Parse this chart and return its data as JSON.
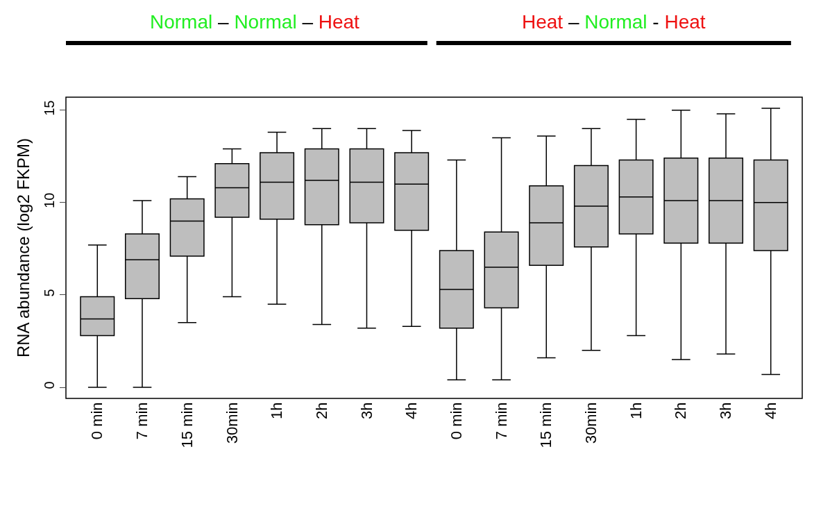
{
  "chart_data": {
    "type": "box",
    "ylabel": "RNA abundance (log2 FKPM)",
    "categories": [
      "0 min",
      "7 min",
      "15 min",
      "30min",
      "1h",
      "2h",
      "3h",
      "4h",
      "0 min",
      "7 min",
      "15 min",
      "30min",
      "1h",
      "2h",
      "3h",
      "4h"
    ],
    "boxes": [
      {
        "low": 0,
        "q1": 2.8,
        "median": 3.7,
        "q3": 4.9,
        "high": 7.7
      },
      {
        "low": 0,
        "q1": 4.8,
        "median": 6.9,
        "q3": 8.3,
        "high": 10.1
      },
      {
        "low": 3.5,
        "q1": 7.1,
        "median": 9.0,
        "q3": 10.2,
        "high": 11.4
      },
      {
        "low": 4.9,
        "q1": 9.2,
        "median": 10.8,
        "q3": 12.1,
        "high": 12.9
      },
      {
        "low": 4.5,
        "q1": 9.1,
        "median": 11.1,
        "q3": 12.7,
        "high": 13.8
      },
      {
        "low": 3.4,
        "q1": 8.8,
        "median": 11.2,
        "q3": 12.9,
        "high": 14.0
      },
      {
        "low": 3.2,
        "q1": 8.9,
        "median": 11.1,
        "q3": 12.9,
        "high": 14.0
      },
      {
        "low": 3.3,
        "q1": 8.5,
        "median": 11.0,
        "q3": 12.7,
        "high": 13.9
      },
      {
        "low": 0.4,
        "q1": 3.2,
        "median": 5.3,
        "q3": 7.4,
        "high": 12.3
      },
      {
        "low": 0.4,
        "q1": 4.3,
        "median": 6.5,
        "q3": 8.4,
        "high": 13.5
      },
      {
        "low": 1.6,
        "q1": 6.6,
        "median": 8.9,
        "q3": 10.9,
        "high": 13.6
      },
      {
        "low": 2.0,
        "q1": 7.6,
        "median": 9.8,
        "q3": 12.0,
        "high": 14.0
      },
      {
        "low": 2.8,
        "q1": 8.3,
        "median": 10.3,
        "q3": 12.3,
        "high": 14.5
      },
      {
        "low": 1.5,
        "q1": 7.8,
        "median": 10.1,
        "q3": 12.4,
        "high": 15.0
      },
      {
        "low": 1.8,
        "q1": 7.8,
        "median": 10.1,
        "q3": 12.4,
        "high": 14.8
      },
      {
        "low": 0.7,
        "q1": 7.4,
        "median": 10.0,
        "q3": 12.3,
        "high": 15.1
      }
    ],
    "color": "#bebebe",
    "ylim": [
      -0.6,
      15.7
    ],
    "yticks": [
      0,
      5,
      10,
      15
    ],
    "annotations": [
      "Normal",
      "–",
      "Normal",
      "–",
      "Heat",
      "Heat",
      "–",
      "Normal",
      "-",
      "Heat"
    ]
  }
}
